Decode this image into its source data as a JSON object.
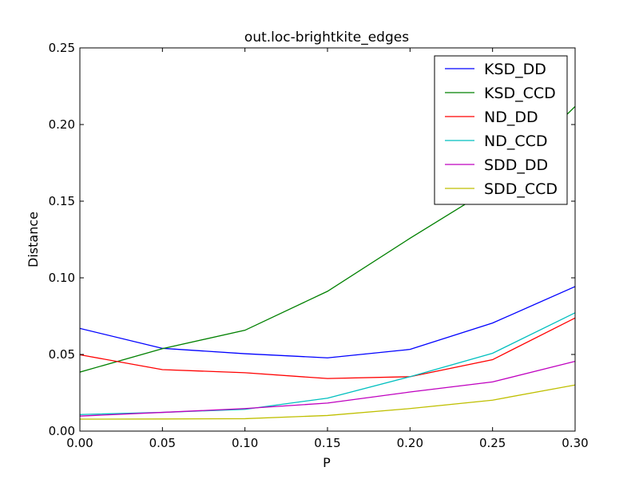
{
  "chart_data": {
    "type": "line",
    "title": "out.loc-brightkite_edges",
    "xlabel": "P",
    "ylabel": "Distance",
    "xlim": [
      0.0,
      0.3
    ],
    "ylim": [
      0.0,
      0.25
    ],
    "x": [
      0.0,
      0.05,
      0.1,
      0.15,
      0.2,
      0.25,
      0.3
    ],
    "xticks": [
      "0.00",
      "0.05",
      "0.10",
      "0.15",
      "0.20",
      "0.25",
      "0.30"
    ],
    "yticks": [
      "0.00",
      "0.05",
      "0.10",
      "0.15",
      "0.20",
      "0.25"
    ],
    "grid": false,
    "legend_position": "top-right",
    "series": [
      {
        "name": "KSD_DD",
        "color": "#0000ff",
        "values": [
          0.067,
          0.054,
          0.0505,
          0.0478,
          0.0533,
          0.0705,
          0.0943
        ]
      },
      {
        "name": "KSD_CCD",
        "color": "#008000",
        "values": [
          0.0385,
          0.0538,
          0.0658,
          0.0912,
          0.1258,
          0.159,
          0.2118
        ]
      },
      {
        "name": "ND_DD",
        "color": "#ff0000",
        "values": [
          0.0498,
          0.0401,
          0.0381,
          0.0343,
          0.0355,
          0.0466,
          0.0738
        ]
      },
      {
        "name": "ND_CCD",
        "color": "#00bfbf",
        "values": [
          0.0108,
          0.0122,
          0.0142,
          0.0215,
          0.0355,
          0.0508,
          0.0772
        ]
      },
      {
        "name": "SDD_DD",
        "color": "#bf00bf",
        "values": [
          0.0098,
          0.0122,
          0.0147,
          0.0183,
          0.0255,
          0.0321,
          0.0455
        ]
      },
      {
        "name": "SDD_CCD",
        "color": "#bfbf00",
        "values": [
          0.0078,
          0.0079,
          0.0081,
          0.0102,
          0.0147,
          0.0202,
          0.0301
        ]
      }
    ]
  }
}
